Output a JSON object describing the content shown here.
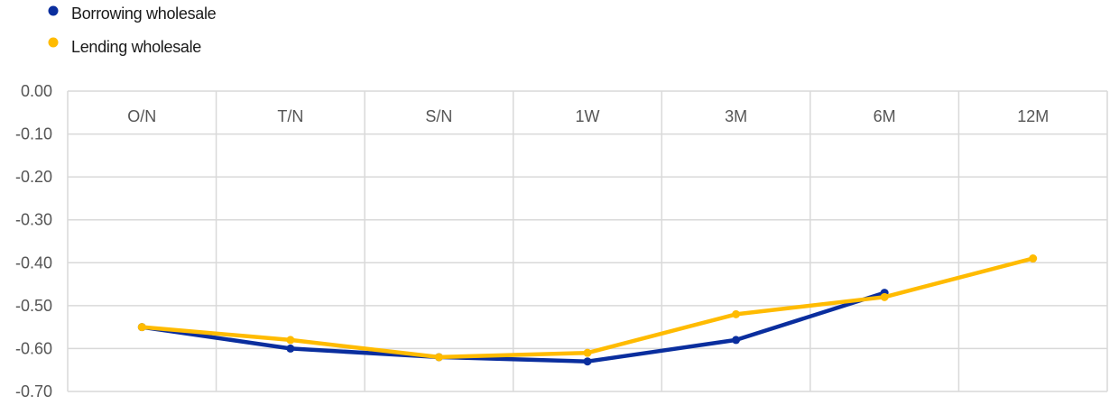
{
  "chart_data": {
    "type": "line",
    "categories": [
      "O/N",
      "T/N",
      "S/N",
      "1W",
      "3M",
      "6M",
      "12M"
    ],
    "series": [
      {
        "name": "Borrowing wholesale",
        "color": "#0a2e9e",
        "values": [
          -0.55,
          -0.6,
          -0.62,
          -0.63,
          -0.58,
          -0.47,
          null
        ]
      },
      {
        "name": "Lending wholesale",
        "color": "#ffbb00",
        "values": [
          -0.55,
          -0.58,
          -0.62,
          -0.61,
          -0.52,
          -0.48,
          -0.39
        ]
      }
    ],
    "y_ticks": [
      "0.00",
      "-0.10",
      "-0.20",
      "-0.30",
      "-0.40",
      "-0.50",
      "-0.60",
      "-0.70"
    ],
    "ylim": [
      -0.7,
      0.0
    ],
    "grid": true,
    "legend_position": "top-left",
    "xaxis_position": "top"
  }
}
